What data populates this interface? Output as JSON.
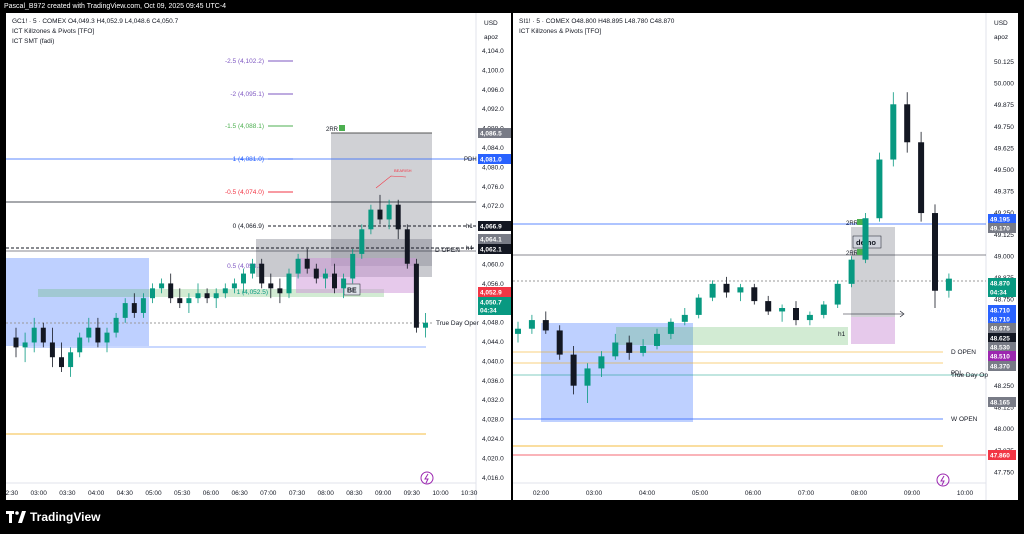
{
  "header_text": "Pascal_B972 created with TradingView.com, Oct 09, 2025 09:45 UTC-4",
  "brand": "TradingView",
  "colors": {
    "up": "#089981",
    "down": "#131722",
    "blue_box": "rgba(41,98,255,0.3)",
    "green_zone": "rgba(76,175,80,0.25)",
    "gray_box": "rgba(120,123,134,0.35)",
    "purple_box": "rgba(206,147,216,0.5)"
  },
  "left": {
    "symbol_line": "GC1! · 5 · COMEX  O4,049.3  H4,052.9  L4,048.6  C4,050.7",
    "indicator1": "ICT Killzones & Pivots [TFO]",
    "indicator2": "ICT SMT (fadi)",
    "currency": "USD",
    "apoz": "apoz",
    "y_ticks": [
      "4,104.0",
      "4,100.0",
      "4,096.0",
      "4,092.0",
      "4,088.0",
      "4,084.0",
      "4,080.0",
      "4,076.0",
      "4,072.0",
      "4,068.0",
      "4,064.0",
      "4,060.0",
      "4,056.0",
      "4,052.0",
      "4,048.0",
      "4,044.0",
      "4,040.0",
      "4,036.0",
      "4,032.0",
      "4,028.0",
      "4,024.0",
      "4,020.0",
      "4,016.0"
    ],
    "x_ticks": [
      "02:30",
      "03:00",
      "03:30",
      "04:00",
      "04:30",
      "05:00",
      "05:30",
      "06:00",
      "06:30",
      "07:00",
      "07:30",
      "08:00",
      "08:30",
      "09:00",
      "09:30",
      "10:00",
      "10:30"
    ],
    "price_labels": [
      "4,086.5",
      "4,081.0",
      "4,066.9",
      "4,064.1",
      "4,062.1",
      "4,052.9",
      "4,050.7",
      "04:34"
    ],
    "fib_labels": [
      "-2.5 (4,102.2)",
      "-2 (4,095.1)",
      "-1.5 (4,088.1)",
      "1 (4,081.0)",
      "-0.5 (4,074.0)",
      "0 (4,066.9)",
      "0.5 (4,058.3)",
      "1 (4,052.5)"
    ],
    "annotations": {
      "rr": "2RR",
      "pdh": "PDH",
      "h1": "h1",
      "h4": "h4",
      "d_open": "D OPEN",
      "true_day": "True Day Oper",
      "be": "BE",
      "smt": "BEARISH"
    },
    "chart_data": {
      "type": "candlestick",
      "ylim": [
        4016,
        4106
      ],
      "candles": [
        [
          4048,
          4050,
          4044,
          4046
        ],
        [
          4046,
          4049,
          4043,
          4047
        ],
        [
          4047,
          4052,
          4045,
          4050
        ],
        [
          4050,
          4051,
          4046,
          4047
        ],
        [
          4047,
          4050,
          4042,
          4044
        ],
        [
          4044,
          4047,
          4041,
          4042
        ],
        [
          4042,
          4046,
          4040,
          4045
        ],
        [
          4045,
          4049,
          4044,
          4048
        ],
        [
          4048,
          4052,
          4047,
          4050
        ],
        [
          4050,
          4052,
          4046,
          4047
        ],
        [
          4047,
          4050,
          4045,
          4049
        ],
        [
          4049,
          4053,
          4048,
          4052
        ],
        [
          4052,
          4056,
          4051,
          4055
        ],
        [
          4055,
          4057,
          4052,
          4053
        ],
        [
          4053,
          4057,
          4052,
          4056
        ],
        [
          4056,
          4059,
          4055,
          4058
        ],
        [
          4058,
          4060,
          4057,
          4059
        ],
        [
          4059,
          4061,
          4055,
          4056
        ],
        [
          4056,
          4058,
          4054,
          4055
        ],
        [
          4055,
          4057,
          4053,
          4056
        ],
        [
          4056,
          4059,
          4055,
          4057
        ],
        [
          4057,
          4058,
          4055,
          4056
        ],
        [
          4056,
          4058,
          4054,
          4057
        ],
        [
          4057,
          4059,
          4056,
          4058
        ],
        [
          4058,
          4060,
          4057,
          4059
        ],
        [
          4059,
          4062,
          4057,
          4061
        ],
        [
          4061,
          4064,
          4060,
          4063
        ],
        [
          4063,
          4064,
          4058,
          4059
        ],
        [
          4059,
          4061,
          4056,
          4058
        ],
        [
          4058,
          4060,
          4055,
          4057
        ],
        [
          4057,
          4062,
          4056,
          4061
        ],
        [
          4061,
          4065,
          4060,
          4064
        ],
        [
          4064,
          4066,
          4061,
          4062
        ],
        [
          4062,
          4063,
          4059,
          4060
        ],
        [
          4060,
          4062,
          4058,
          4061
        ],
        [
          4061,
          4063,
          4057,
          4058
        ],
        [
          4058,
          4061,
          4056,
          4060
        ],
        [
          4060,
          4066,
          4059,
          4065
        ],
        [
          4065,
          4071,
          4064,
          4070
        ],
        [
          4070,
          4075,
          4069,
          4074
        ],
        [
          4074,
          4077,
          4071,
          4072
        ],
        [
          4072,
          4076,
          4070,
          4075
        ],
        [
          4075,
          4076,
          4068,
          4070
        ],
        [
          4070,
          4071,
          4062,
          4063
        ],
        [
          4063,
          4064,
          4049,
          4050
        ],
        [
          4050,
          4053,
          4048,
          4051
        ]
      ]
    }
  },
  "right": {
    "symbol_line": "SI1! · 5 · COMEX  O48.800  H48.895  L48.780  C48.870",
    "indicator1": "ICT Killzones & Pivots [TFO]",
    "currency": "USD",
    "apoz": "apoz",
    "y_ticks": [
      "50.125",
      "50.000",
      "49.875",
      "49.750",
      "49.625",
      "49.500",
      "49.375",
      "49.250",
      "49.125",
      "49.000",
      "48.875",
      "48.750",
      "48.625",
      "48.500",
      "48.375",
      "48.250",
      "48.125",
      "48.000",
      "47.875",
      "47.750"
    ],
    "x_ticks": [
      "02:00",
      "03:00",
      "04:00",
      "05:00",
      "06:00",
      "07:00",
      "08:00",
      "09:00",
      "10:00"
    ],
    "price_labels": [
      "49.195",
      "49.170",
      "48.870",
      "04:34",
      "48.710",
      "48.710",
      "48.675",
      "48.625",
      "48.530",
      "48.510",
      "48.370",
      "48.165",
      "47.860"
    ],
    "annotations": {
      "rr": "2RR",
      "rr2": "2RR",
      "demo": "demo",
      "h1": "h1",
      "d_open": "D OPEN",
      "true_day": "True Day Op",
      "pdl": "PDL",
      "w_open": "W OPEN"
    },
    "chart_data": {
      "type": "candlestick",
      "ylim": [
        47.7,
        50.2
      ],
      "candles": [
        [
          48.55,
          48.62,
          48.5,
          48.58
        ],
        [
          48.58,
          48.66,
          48.55,
          48.63
        ],
        [
          48.63,
          48.68,
          48.55,
          48.57
        ],
        [
          48.57,
          48.6,
          48.4,
          48.43
        ],
        [
          48.43,
          48.48,
          48.2,
          48.25
        ],
        [
          48.25,
          48.38,
          48.15,
          48.35
        ],
        [
          48.35,
          48.45,
          48.3,
          48.42
        ],
        [
          48.42,
          48.55,
          48.4,
          48.5
        ],
        [
          48.5,
          48.54,
          48.4,
          48.44
        ],
        [
          48.44,
          48.52,
          48.42,
          48.48
        ],
        [
          48.48,
          48.58,
          48.46,
          48.55
        ],
        [
          48.55,
          48.64,
          48.52,
          48.62
        ],
        [
          48.62,
          48.7,
          48.6,
          48.66
        ],
        [
          48.66,
          48.78,
          48.64,
          48.76
        ],
        [
          48.76,
          48.86,
          48.74,
          48.84
        ],
        [
          48.84,
          48.88,
          48.76,
          48.79
        ],
        [
          48.79,
          48.84,
          48.74,
          48.82
        ],
        [
          48.82,
          48.84,
          48.72,
          48.74
        ],
        [
          48.74,
          48.77,
          48.66,
          48.68
        ],
        [
          48.68,
          48.72,
          48.62,
          48.7
        ],
        [
          48.7,
          48.74,
          48.6,
          48.63
        ],
        [
          48.63,
          48.68,
          48.6,
          48.66
        ],
        [
          48.66,
          48.74,
          48.64,
          48.72
        ],
        [
          48.72,
          48.86,
          48.7,
          48.84
        ],
        [
          48.84,
          49.0,
          48.82,
          48.98
        ],
        [
          48.98,
          49.25,
          48.96,
          49.22
        ],
        [
          49.22,
          49.6,
          49.2,
          49.56
        ],
        [
          49.56,
          49.95,
          49.52,
          49.88
        ],
        [
          49.88,
          49.95,
          49.6,
          49.66
        ],
        [
          49.66,
          49.72,
          49.2,
          49.25
        ],
        [
          49.25,
          49.3,
          48.7,
          48.8
        ],
        [
          48.8,
          48.9,
          48.76,
          48.87
        ]
      ]
    }
  }
}
